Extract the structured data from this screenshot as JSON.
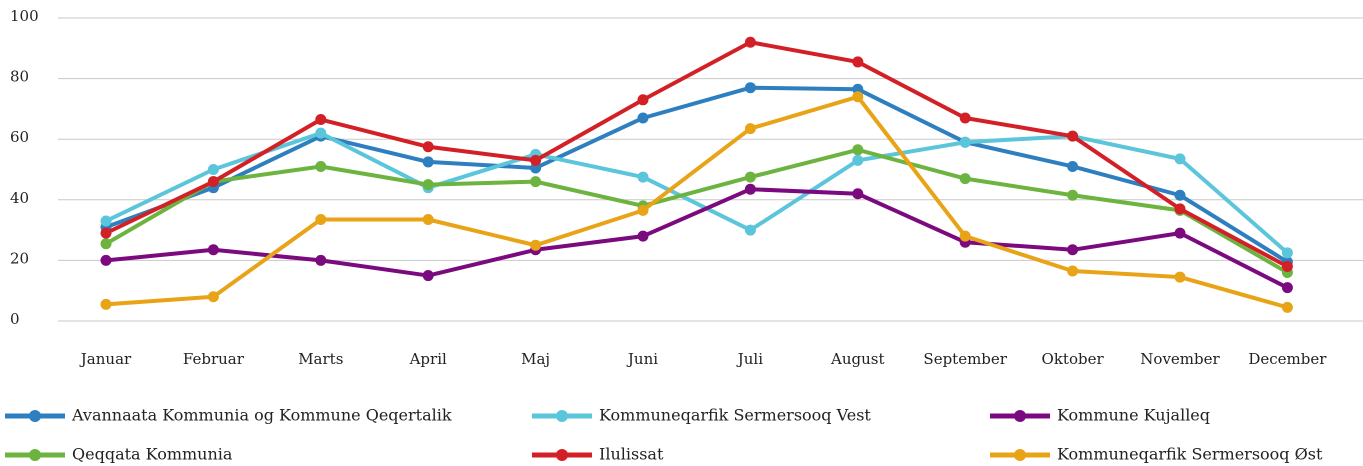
{
  "chart_data": {
    "type": "line",
    "categories": [
      "Januar",
      "Februar",
      "Marts",
      "April",
      "Maj",
      "Juni",
      "Juli",
      "August",
      "September",
      "Oktober",
      "November",
      "December"
    ],
    "series": [
      {
        "name": "Avannaata Kommunia og Kommune Qeqertalik",
        "color": "#2e7fbf",
        "values": [
          31,
          44,
          61,
          52.5,
          50.5,
          67,
          77,
          76.5,
          59,
          51,
          41.5,
          19.5
        ]
      },
      {
        "name": "Kommuneqarfik Sermersooq Vest",
        "color": "#5bc5db",
        "values": [
          33,
          50,
          62,
          44,
          55,
          47.5,
          30,
          53,
          59,
          61,
          53.5,
          22.5
        ]
      },
      {
        "name": "Kommune Kujalleq",
        "color": "#7b0a7e",
        "values": [
          20,
          23.5,
          20,
          15,
          23.5,
          28,
          43.5,
          42,
          26,
          23.5,
          29,
          11
        ]
      },
      {
        "name": "Qeqqata Kommunia",
        "color": "#6db33f",
        "values": [
          25.5,
          46,
          51,
          45,
          46,
          38,
          47.5,
          56.5,
          47,
          41.5,
          36.5,
          16
        ]
      },
      {
        "name": "Ilulissat",
        "color": "#d32027",
        "values": [
          29,
          46,
          66.5,
          57.5,
          53,
          73,
          92,
          85.5,
          67,
          61,
          37,
          18
        ]
      },
      {
        "name": "Kommuneqarfik Sermersooq Øst",
        "color": "#e8a317",
        "values": [
          5.5,
          8,
          33.5,
          33.5,
          25,
          36.5,
          63.5,
          74,
          28,
          16.5,
          14.5,
          4.5
        ]
      }
    ],
    "ylim": [
      0,
      100
    ],
    "yticks": [
      0,
      20,
      40,
      60,
      80,
      100
    ],
    "grid": true,
    "legend": "bottom"
  }
}
